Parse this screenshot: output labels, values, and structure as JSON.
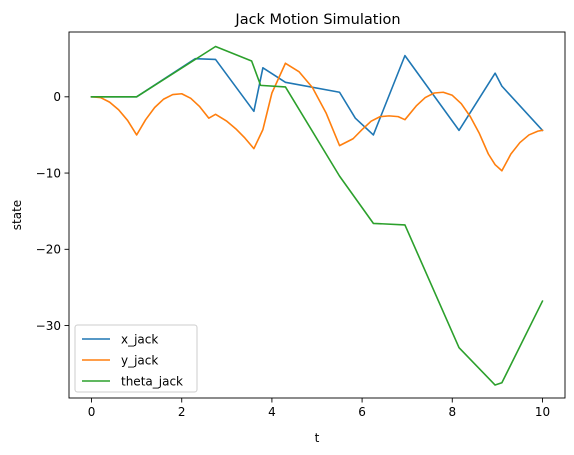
{
  "chart_data": {
    "type": "line",
    "title": "Jack Motion Simulation",
    "xlabel": "t",
    "ylabel": "state",
    "xlim": [
      -0.5,
      10.5
    ],
    "ylim": [
      -39.5,
      8.5
    ],
    "xticks": [
      0,
      2,
      4,
      6,
      8,
      10
    ],
    "yticks": [
      0,
      -10,
      -20,
      -30
    ],
    "grid": false,
    "legend_position": "lower-left",
    "series": [
      {
        "name": "x_jack",
        "color": "#1f77b4",
        "x": [
          0,
          1,
          2.3,
          2.75,
          3.6,
          3.8,
          4.3,
          5.5,
          5.85,
          6.25,
          6.95,
          8.15,
          8.95,
          9.1,
          10
        ],
        "y": [
          0,
          0,
          5.0,
          4.9,
          -1.9,
          3.8,
          1.9,
          0.6,
          -2.8,
          -5.0,
          5.4,
          -4.4,
          3.1,
          1.4,
          -4.4
        ]
      },
      {
        "name": "y_jack",
        "color": "#ff7f0e",
        "x": [
          0,
          0.2,
          0.4,
          0.6,
          0.8,
          1.0,
          1.2,
          1.4,
          1.6,
          1.8,
          2.0,
          2.2,
          2.4,
          2.6,
          2.75,
          3.0,
          3.2,
          3.4,
          3.6,
          3.8,
          4.0,
          4.3,
          4.6,
          4.9,
          5.2,
          5.5,
          5.8,
          6.0,
          6.2,
          6.4,
          6.6,
          6.8,
          6.95,
          7.2,
          7.4,
          7.6,
          7.8,
          8.0,
          8.2,
          8.4,
          8.6,
          8.8,
          8.95,
          9.1,
          9.3,
          9.5,
          9.7,
          9.9,
          10.0
        ],
        "y": [
          0,
          -0.1,
          -0.7,
          -1.7,
          -3.1,
          -5.0,
          -3.0,
          -1.4,
          -0.3,
          0.3,
          0.4,
          -0.2,
          -1.3,
          -2.8,
          -2.3,
          -3.2,
          -4.2,
          -5.4,
          -6.8,
          -4.3,
          0.5,
          4.4,
          3.3,
          1.2,
          -2.1,
          -6.4,
          -5.5,
          -4.3,
          -3.2,
          -2.6,
          -2.5,
          -2.6,
          -3.0,
          -1.2,
          -0.1,
          0.5,
          0.6,
          0.2,
          -0.9,
          -2.6,
          -4.8,
          -7.5,
          -8.9,
          -9.7,
          -7.5,
          -6.0,
          -5.0,
          -4.5,
          -4.4
        ]
      },
      {
        "name": "theta_jack",
        "color": "#2ca02c",
        "x": [
          0,
          1,
          2.75,
          3.55,
          3.75,
          4.3,
          5.5,
          6.25,
          6.95,
          8.15,
          8.95,
          9.1,
          10
        ],
        "y": [
          0,
          0,
          6.6,
          4.7,
          1.5,
          1.3,
          -10.4,
          -16.6,
          -16.8,
          -32.9,
          -37.8,
          -37.5,
          -26.8
        ]
      }
    ]
  }
}
